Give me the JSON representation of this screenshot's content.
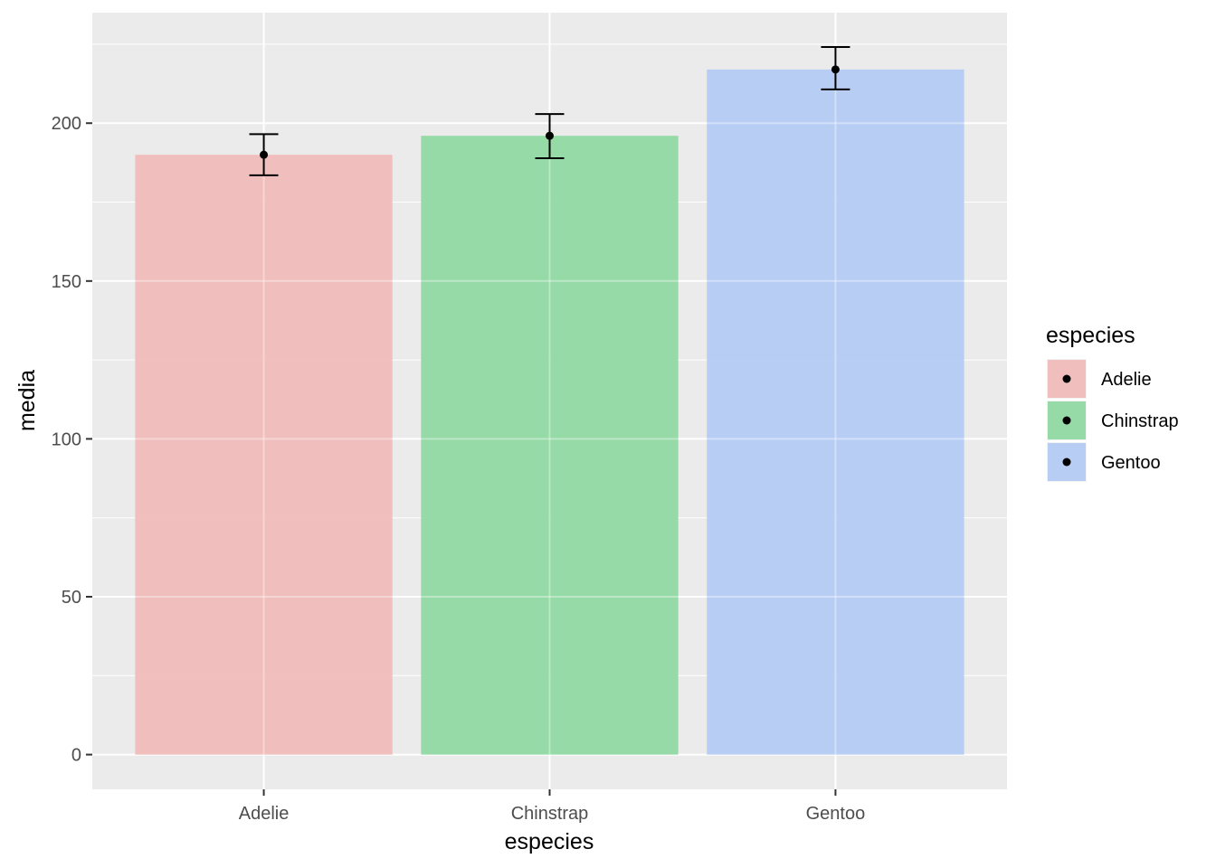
{
  "chart_data": {
    "type": "bar",
    "categories": [
      "Adelie",
      "Chinstrap",
      "Gentoo"
    ],
    "values": [
      190,
      196,
      217
    ],
    "error_bars": [
      {
        "low": 183.5,
        "high": 196.5
      },
      {
        "low": 188.9,
        "high": 202.9
      },
      {
        "low": 210.7,
        "high": 224.1
      }
    ],
    "xlabel": "especies",
    "ylabel": "media",
    "ylim": [
      -11,
      235
    ],
    "y_ticks": [
      0,
      50,
      100,
      150,
      200
    ],
    "grid": true,
    "legend": {
      "title": "especies",
      "position": "right",
      "entries": [
        "Adelie",
        "Chinstrap",
        "Gentoo"
      ]
    },
    "colors": [
      "#F0BBB8",
      "#8ED8A1",
      "#B3CAF3"
    ],
    "panel_background": "#EBEBEB"
  }
}
